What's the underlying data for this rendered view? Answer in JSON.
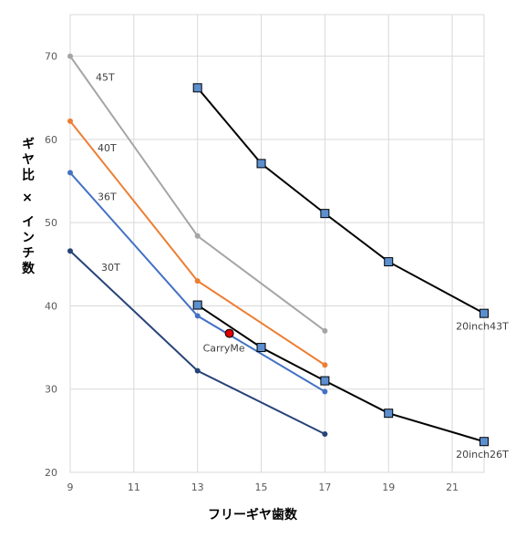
{
  "chart_data": {
    "type": "line",
    "xlabel": "フリーギヤ歯数",
    "ylabel": "ギヤ比 × インチ数",
    "xlim": [
      9,
      22
    ],
    "ylim": [
      20,
      75
    ],
    "xticks": [
      9,
      11,
      13,
      15,
      17,
      19,
      21
    ],
    "yticks": [
      20,
      30,
      40,
      50,
      60,
      70
    ],
    "grid": true,
    "series": [
      {
        "name": "45T",
        "color": "#a5a5a5",
        "marker": "circle",
        "x": [
          9,
          13,
          17
        ],
        "y": [
          70.0,
          48.4,
          37.0
        ]
      },
      {
        "name": "40T",
        "color": "#ed7d31",
        "marker": "circle",
        "x": [
          9,
          13,
          17
        ],
        "y": [
          62.2,
          43.0,
          32.9
        ]
      },
      {
        "name": "36T",
        "color": "#4472c4",
        "marker": "circle",
        "x": [
          9,
          13,
          17
        ],
        "y": [
          56.0,
          38.8,
          29.7
        ]
      },
      {
        "name": "30T",
        "color": "#264478",
        "marker": "circle",
        "x": [
          9,
          13,
          17
        ],
        "y": [
          46.6,
          32.2,
          24.6
        ]
      },
      {
        "name": "20inch43T",
        "color": "#000000",
        "marker": "square",
        "x": [
          13,
          15,
          17,
          19,
          22
        ],
        "y": [
          66.2,
          57.1,
          51.1,
          45.3,
          39.1
        ]
      },
      {
        "name": "20inch26T",
        "color": "#000000",
        "marker": "square",
        "x": [
          13,
          15,
          17,
          19,
          22
        ],
        "y": [
          40.1,
          35.0,
          31.0,
          27.1,
          23.7
        ]
      }
    ],
    "points": [
      {
        "name": "CarryMe",
        "x": 14.0,
        "y": 36.7,
        "color": "#e00000"
      }
    ]
  }
}
